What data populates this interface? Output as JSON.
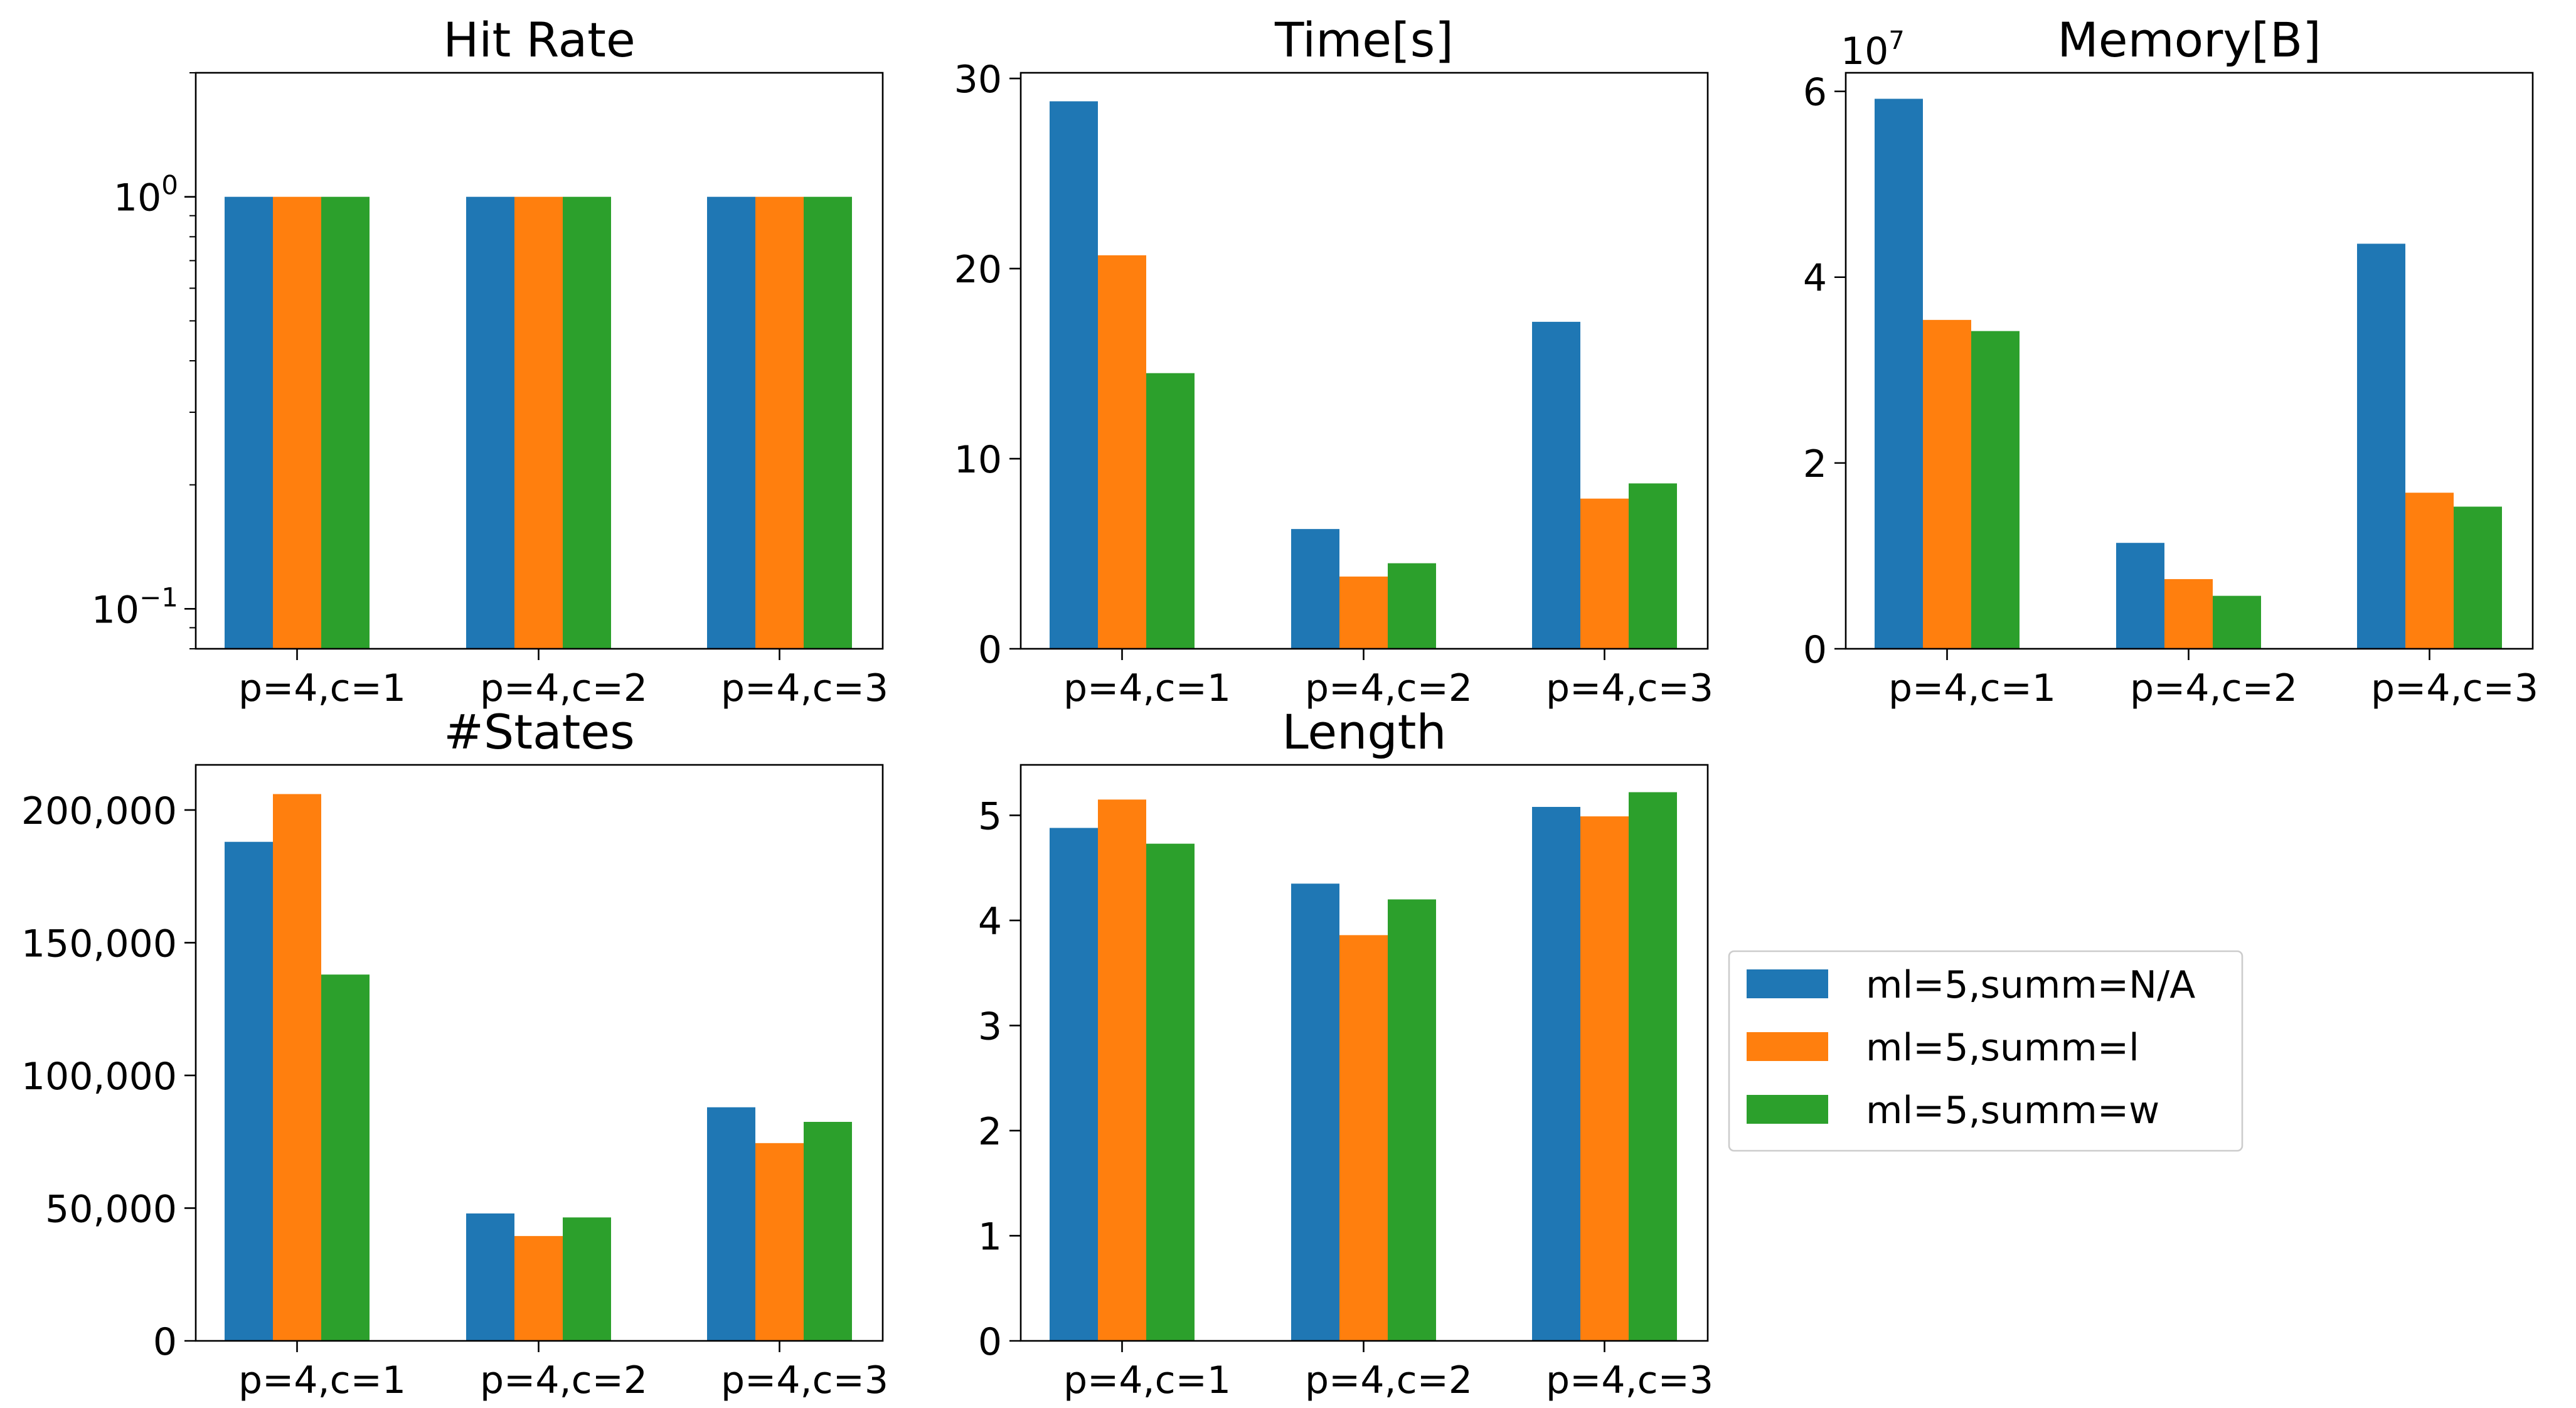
{
  "colors": {
    "series": [
      "#1f77b4",
      "#ff7f0e",
      "#2ca02c"
    ]
  },
  "legend": {
    "entries": [
      "ml=5,summ=N/A",
      "ml=5,summ=l",
      "ml=5,summ=w"
    ]
  },
  "chart_data": [
    {
      "type": "bar",
      "title": "Hit Rate",
      "scale": "log",
      "categories": [
        "p=4,c=1",
        "p=4,c=2",
        "p=4,c=3"
      ],
      "series": [
        {
          "name": "ml=5,summ=N/A",
          "values": [
            1,
            1,
            1
          ]
        },
        {
          "name": "ml=5,summ=l",
          "values": [
            1,
            1,
            1
          ]
        },
        {
          "name": "ml=5,summ=w",
          "values": [
            1,
            1,
            1
          ]
        }
      ],
      "ylim": [
        0.08,
        2
      ],
      "yticks": [
        {
          "value": 1,
          "base": "10",
          "exp": "0"
        },
        {
          "value": 0.1,
          "base": "10",
          "exp": "−1"
        }
      ],
      "xlabel": "",
      "ylabel": ""
    },
    {
      "type": "bar",
      "title": "Time[s]",
      "scale": "linear",
      "categories": [
        "p=4,c=1",
        "p=4,c=2",
        "p=4,c=3"
      ],
      "series": [
        {
          "name": "ml=5,summ=N/A",
          "values": [
            28.8,
            6.3,
            17.2
          ]
        },
        {
          "name": "ml=5,summ=l",
          "values": [
            20.7,
            3.8,
            7.9
          ]
        },
        {
          "name": "ml=5,summ=w",
          "values": [
            14.5,
            4.5,
            8.7
          ]
        }
      ],
      "ylim": [
        0,
        30.3
      ],
      "yticks": [
        {
          "value": 0,
          "label": "0"
        },
        {
          "value": 10,
          "label": "10"
        },
        {
          "value": 20,
          "label": "20"
        },
        {
          "value": 30,
          "label": "30"
        }
      ],
      "xlabel": "",
      "ylabel": ""
    },
    {
      "type": "bar",
      "title": "Memory[B]",
      "scale": "linear",
      "offset_text": {
        "base": "10",
        "exp": "7"
      },
      "categories": [
        "p=4,c=1",
        "p=4,c=2",
        "p=4,c=3"
      ],
      "series": [
        {
          "name": "ml=5,summ=N/A",
          "values": [
            5.92,
            1.14,
            4.36
          ]
        },
        {
          "name": "ml=5,summ=l",
          "values": [
            3.54,
            0.75,
            1.68
          ]
        },
        {
          "name": "ml=5,summ=w",
          "values": [
            3.42,
            0.57,
            1.53
          ]
        }
      ],
      "ylim": [
        0,
        6.2
      ],
      "yticks": [
        {
          "value": 0,
          "label": "0"
        },
        {
          "value": 2,
          "label": "2"
        },
        {
          "value": 4,
          "label": "4"
        },
        {
          "value": 6,
          "label": "6"
        }
      ],
      "xlabel": "",
      "ylabel": ""
    },
    {
      "type": "bar",
      "title": "#States",
      "scale": "linear",
      "categories": [
        "p=4,c=1",
        "p=4,c=2",
        "p=4,c=3"
      ],
      "series": [
        {
          "name": "ml=5,summ=N/A",
          "values": [
            188000,
            48000,
            88000
          ]
        },
        {
          "name": "ml=5,summ=l",
          "values": [
            206000,
            39500,
            74500
          ]
        },
        {
          "name": "ml=5,summ=w",
          "values": [
            138000,
            46500,
            82500
          ]
        }
      ],
      "ylim": [
        0,
        217000
      ],
      "yticks": [
        {
          "value": 0,
          "label": "0"
        },
        {
          "value": 50000,
          "label": "50,000"
        },
        {
          "value": 100000,
          "label": "100,000"
        },
        {
          "value": 150000,
          "label": "150,000"
        },
        {
          "value": 200000,
          "label": "200,000"
        }
      ],
      "xlabel": "",
      "ylabel": ""
    },
    {
      "type": "bar",
      "title": "Length",
      "scale": "linear",
      "categories": [
        "p=4,c=1",
        "p=4,c=2",
        "p=4,c=3"
      ],
      "series": [
        {
          "name": "ml=5,summ=N/A",
          "values": [
            4.88,
            4.35,
            5.08
          ]
        },
        {
          "name": "ml=5,summ=l",
          "values": [
            5.15,
            3.86,
            4.99
          ]
        },
        {
          "name": "ml=5,summ=w",
          "values": [
            4.73,
            4.2,
            5.22
          ]
        }
      ],
      "ylim": [
        0,
        5.48
      ],
      "yticks": [
        {
          "value": 0,
          "label": "0"
        },
        {
          "value": 1,
          "label": "1"
        },
        {
          "value": 2,
          "label": "2"
        },
        {
          "value": 3,
          "label": "3"
        },
        {
          "value": 4,
          "label": "4"
        },
        {
          "value": 5,
          "label": "5"
        }
      ],
      "xlabel": "",
      "ylabel": ""
    }
  ]
}
